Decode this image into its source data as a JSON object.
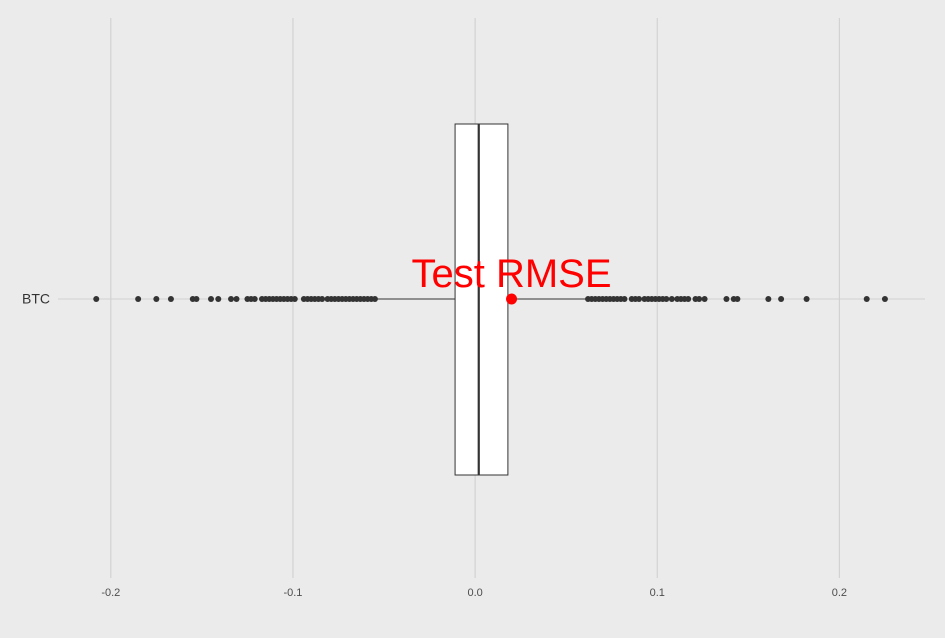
{
  "chart_data": {
    "type": "box",
    "orientation": "horizontal",
    "categories": [
      "BTC"
    ],
    "x_ticks": [
      -0.2,
      -0.1,
      0.0,
      0.1,
      0.2
    ],
    "x_tick_labels": [
      "-0.2",
      "-0.1",
      "0.0",
      "0.1",
      "0.2"
    ],
    "xlim": [
      -0.229,
      0.247
    ],
    "grid": true,
    "box": {
      "category": "BTC",
      "q1": -0.011,
      "median": 0.002,
      "q3": 0.018,
      "whisker_low": -0.054,
      "whisker_high": 0.061
    },
    "outliers": [
      -0.208,
      -0.185,
      -0.175,
      -0.167,
      -0.155,
      -0.153,
      -0.145,
      -0.141,
      -0.134,
      -0.131,
      -0.125,
      -0.123,
      -0.121,
      -0.117,
      -0.115,
      -0.113,
      -0.111,
      -0.109,
      -0.107,
      -0.105,
      -0.103,
      -0.101,
      -0.099,
      -0.094,
      -0.092,
      -0.09,
      -0.088,
      -0.086,
      -0.084,
      -0.081,
      -0.079,
      -0.077,
      -0.075,
      -0.073,
      -0.071,
      -0.069,
      -0.067,
      -0.065,
      -0.063,
      -0.061,
      -0.059,
      -0.057,
      -0.055,
      0.062,
      0.064,
      0.066,
      0.068,
      0.07,
      0.072,
      0.074,
      0.076,
      0.078,
      0.08,
      0.082,
      0.086,
      0.088,
      0.09,
      0.093,
      0.095,
      0.097,
      0.099,
      0.101,
      0.103,
      0.105,
      0.108,
      0.111,
      0.113,
      0.115,
      0.117,
      0.121,
      0.123,
      0.126,
      0.138,
      0.142,
      0.144,
      0.161,
      0.168,
      0.182,
      0.215,
      0.225
    ],
    "highlight": {
      "label": "Test RMSE",
      "x": 0.02,
      "color": "#ff0000"
    }
  }
}
